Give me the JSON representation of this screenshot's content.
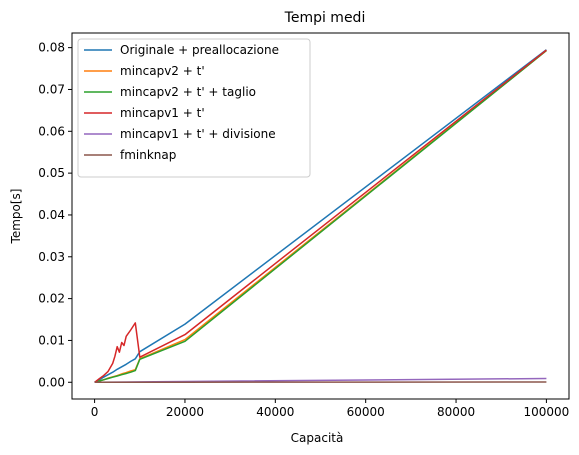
{
  "chart_data": {
    "type": "line",
    "title": "Tempi medi",
    "xlabel": "Capacità",
    "ylabel": "Tempo[s]",
    "xlim": [
      -5000,
      105000
    ],
    "ylim": [
      -0.004,
      0.0835
    ],
    "xticks": [
      0,
      20000,
      40000,
      60000,
      80000,
      100000
    ],
    "xtick_labels": [
      "0",
      "20000",
      "40000",
      "60000",
      "80000",
      "100000"
    ],
    "yticks": [
      0.0,
      0.01,
      0.02,
      0.03,
      0.04,
      0.05,
      0.06,
      0.07,
      0.08
    ],
    "ytick_labels": [
      "0.00",
      "0.01",
      "0.02",
      "0.03",
      "0.04",
      "0.05",
      "0.06",
      "0.07",
      "0.08"
    ],
    "grid": false,
    "legend_position": "top-left",
    "series": [
      {
        "name": "Originale + preallocazione",
        "color": "#1f77b4",
        "x": [
          0,
          1000,
          2000,
          3000,
          4000,
          5000,
          6000,
          7000,
          8000,
          9000,
          10000,
          20000,
          100000
        ],
        "y": [
          0,
          0.0006,
          0.0012,
          0.0018,
          0.0024,
          0.0031,
          0.0037,
          0.0043,
          0.005,
          0.0056,
          0.0073,
          0.0139,
          0.0795
        ]
      },
      {
        "name": "mincapv2 + t'",
        "color": "#ff7f0e",
        "x": [
          0,
          1000,
          2000,
          3000,
          4000,
          5000,
          6000,
          7000,
          8000,
          9000,
          10000,
          20000,
          100000
        ],
        "y": [
          0,
          0.0003,
          0.0006,
          0.001,
          0.0013,
          0.0016,
          0.002,
          0.0023,
          0.0027,
          0.003,
          0.0056,
          0.0102,
          0.0793
        ]
      },
      {
        "name": "mincapv2 + t' + taglio",
        "color": "#2ca02c",
        "x": [
          0,
          1000,
          2000,
          3000,
          4000,
          5000,
          6000,
          7000,
          8000,
          9000,
          10000,
          20000,
          100000
        ],
        "y": [
          0,
          0.0003,
          0.0006,
          0.0009,
          0.0012,
          0.0015,
          0.0018,
          0.0021,
          0.0024,
          0.0028,
          0.0055,
          0.0098,
          0.0793
        ]
      },
      {
        "name": "mincapv1 + t'",
        "color": "#d62728",
        "x": [
          0,
          1000,
          2000,
          3000,
          4000,
          4500,
          5000,
          5500,
          6000,
          6500,
          7000,
          8000,
          9000,
          10000,
          20000,
          100000
        ],
        "y": [
          0,
          0.0008,
          0.0016,
          0.0026,
          0.0045,
          0.0062,
          0.0085,
          0.0072,
          0.0095,
          0.0088,
          0.011,
          0.0125,
          0.0142,
          0.006,
          0.0114,
          0.0794
        ]
      },
      {
        "name": "mincapv1 + t' + divisione",
        "color": "#9467bd",
        "x": [
          0,
          10000,
          20000,
          100000
        ],
        "y": [
          0,
          8e-05,
          0.00018,
          0.0009
        ]
      },
      {
        "name": "fminknap",
        "color": "#8c564b",
        "x": [
          0,
          10000,
          20000,
          100000
        ],
        "y": [
          0,
          1e-05,
          2e-05,
          6e-05
        ]
      }
    ]
  }
}
